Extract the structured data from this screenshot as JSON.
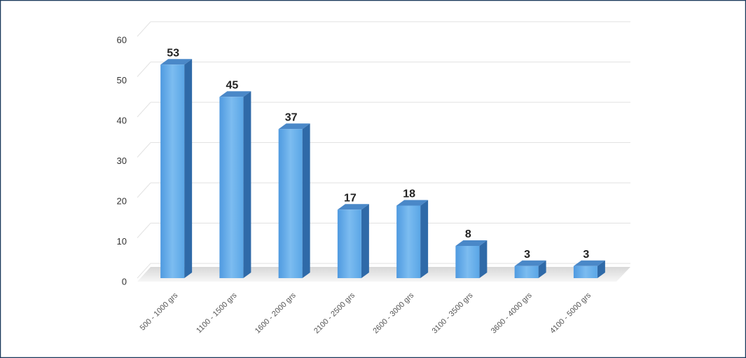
{
  "chart_data": {
    "type": "bar",
    "categories": [
      "500 - 1000 grs",
      "1100 - 1500 grs",
      "1600 - 2000 grs",
      "2100 - 2500 grs",
      "2600 - 3000 grs",
      "3100 - 3500 grs",
      "3600 - 4000 grs",
      "4100 - 5000 grs"
    ],
    "values": [
      53,
      45,
      37,
      17,
      18,
      8,
      3,
      3
    ],
    "color": "#5aa6e6",
    "ylim": [
      0,
      60
    ],
    "yticks": [
      0,
      10,
      20,
      30,
      40,
      50,
      60
    ],
    "grid": true
  }
}
